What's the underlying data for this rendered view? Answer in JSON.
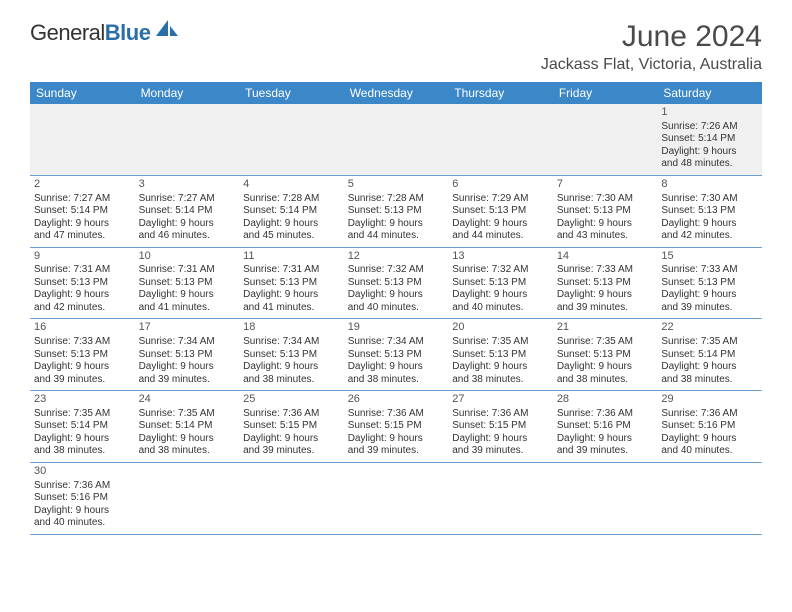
{
  "logo": {
    "text_a": "General",
    "text_b": "Blue"
  },
  "title": "June 2024",
  "location": "Jackass Flat, Victoria, Australia",
  "colors": {
    "header_bg": "#3b87c7",
    "header_text": "#ffffff",
    "row_border": "#6a9fcf",
    "first_row_bg": "#f0f0f0",
    "logo_blue": "#2b6fa8",
    "text": "#333333"
  },
  "day_headers": [
    "Sunday",
    "Monday",
    "Tuesday",
    "Wednesday",
    "Thursday",
    "Friday",
    "Saturday"
  ],
  "weeks": [
    [
      null,
      null,
      null,
      null,
      null,
      null,
      {
        "n": "1",
        "sr": "Sunrise: 7:26 AM",
        "ss": "Sunset: 5:14 PM",
        "d1": "Daylight: 9 hours",
        "d2": "and 48 minutes."
      }
    ],
    [
      {
        "n": "2",
        "sr": "Sunrise: 7:27 AM",
        "ss": "Sunset: 5:14 PM",
        "d1": "Daylight: 9 hours",
        "d2": "and 47 minutes."
      },
      {
        "n": "3",
        "sr": "Sunrise: 7:27 AM",
        "ss": "Sunset: 5:14 PM",
        "d1": "Daylight: 9 hours",
        "d2": "and 46 minutes."
      },
      {
        "n": "4",
        "sr": "Sunrise: 7:28 AM",
        "ss": "Sunset: 5:14 PM",
        "d1": "Daylight: 9 hours",
        "d2": "and 45 minutes."
      },
      {
        "n": "5",
        "sr": "Sunrise: 7:28 AM",
        "ss": "Sunset: 5:13 PM",
        "d1": "Daylight: 9 hours",
        "d2": "and 44 minutes."
      },
      {
        "n": "6",
        "sr": "Sunrise: 7:29 AM",
        "ss": "Sunset: 5:13 PM",
        "d1": "Daylight: 9 hours",
        "d2": "and 44 minutes."
      },
      {
        "n": "7",
        "sr": "Sunrise: 7:30 AM",
        "ss": "Sunset: 5:13 PM",
        "d1": "Daylight: 9 hours",
        "d2": "and 43 minutes."
      },
      {
        "n": "8",
        "sr": "Sunrise: 7:30 AM",
        "ss": "Sunset: 5:13 PM",
        "d1": "Daylight: 9 hours",
        "d2": "and 42 minutes."
      }
    ],
    [
      {
        "n": "9",
        "sr": "Sunrise: 7:31 AM",
        "ss": "Sunset: 5:13 PM",
        "d1": "Daylight: 9 hours",
        "d2": "and 42 minutes."
      },
      {
        "n": "10",
        "sr": "Sunrise: 7:31 AM",
        "ss": "Sunset: 5:13 PM",
        "d1": "Daylight: 9 hours",
        "d2": "and 41 minutes."
      },
      {
        "n": "11",
        "sr": "Sunrise: 7:31 AM",
        "ss": "Sunset: 5:13 PM",
        "d1": "Daylight: 9 hours",
        "d2": "and 41 minutes."
      },
      {
        "n": "12",
        "sr": "Sunrise: 7:32 AM",
        "ss": "Sunset: 5:13 PM",
        "d1": "Daylight: 9 hours",
        "d2": "and 40 minutes."
      },
      {
        "n": "13",
        "sr": "Sunrise: 7:32 AM",
        "ss": "Sunset: 5:13 PM",
        "d1": "Daylight: 9 hours",
        "d2": "and 40 minutes."
      },
      {
        "n": "14",
        "sr": "Sunrise: 7:33 AM",
        "ss": "Sunset: 5:13 PM",
        "d1": "Daylight: 9 hours",
        "d2": "and 39 minutes."
      },
      {
        "n": "15",
        "sr": "Sunrise: 7:33 AM",
        "ss": "Sunset: 5:13 PM",
        "d1": "Daylight: 9 hours",
        "d2": "and 39 minutes."
      }
    ],
    [
      {
        "n": "16",
        "sr": "Sunrise: 7:33 AM",
        "ss": "Sunset: 5:13 PM",
        "d1": "Daylight: 9 hours",
        "d2": "and 39 minutes."
      },
      {
        "n": "17",
        "sr": "Sunrise: 7:34 AM",
        "ss": "Sunset: 5:13 PM",
        "d1": "Daylight: 9 hours",
        "d2": "and 39 minutes."
      },
      {
        "n": "18",
        "sr": "Sunrise: 7:34 AM",
        "ss": "Sunset: 5:13 PM",
        "d1": "Daylight: 9 hours",
        "d2": "and 38 minutes."
      },
      {
        "n": "19",
        "sr": "Sunrise: 7:34 AM",
        "ss": "Sunset: 5:13 PM",
        "d1": "Daylight: 9 hours",
        "d2": "and 38 minutes."
      },
      {
        "n": "20",
        "sr": "Sunrise: 7:35 AM",
        "ss": "Sunset: 5:13 PM",
        "d1": "Daylight: 9 hours",
        "d2": "and 38 minutes."
      },
      {
        "n": "21",
        "sr": "Sunrise: 7:35 AM",
        "ss": "Sunset: 5:13 PM",
        "d1": "Daylight: 9 hours",
        "d2": "and 38 minutes."
      },
      {
        "n": "22",
        "sr": "Sunrise: 7:35 AM",
        "ss": "Sunset: 5:14 PM",
        "d1": "Daylight: 9 hours",
        "d2": "and 38 minutes."
      }
    ],
    [
      {
        "n": "23",
        "sr": "Sunrise: 7:35 AM",
        "ss": "Sunset: 5:14 PM",
        "d1": "Daylight: 9 hours",
        "d2": "and 38 minutes."
      },
      {
        "n": "24",
        "sr": "Sunrise: 7:35 AM",
        "ss": "Sunset: 5:14 PM",
        "d1": "Daylight: 9 hours",
        "d2": "and 38 minutes."
      },
      {
        "n": "25",
        "sr": "Sunrise: 7:36 AM",
        "ss": "Sunset: 5:15 PM",
        "d1": "Daylight: 9 hours",
        "d2": "and 39 minutes."
      },
      {
        "n": "26",
        "sr": "Sunrise: 7:36 AM",
        "ss": "Sunset: 5:15 PM",
        "d1": "Daylight: 9 hours",
        "d2": "and 39 minutes."
      },
      {
        "n": "27",
        "sr": "Sunrise: 7:36 AM",
        "ss": "Sunset: 5:15 PM",
        "d1": "Daylight: 9 hours",
        "d2": "and 39 minutes."
      },
      {
        "n": "28",
        "sr": "Sunrise: 7:36 AM",
        "ss": "Sunset: 5:16 PM",
        "d1": "Daylight: 9 hours",
        "d2": "and 39 minutes."
      },
      {
        "n": "29",
        "sr": "Sunrise: 7:36 AM",
        "ss": "Sunset: 5:16 PM",
        "d1": "Daylight: 9 hours",
        "d2": "and 40 minutes."
      }
    ],
    [
      {
        "n": "30",
        "sr": "Sunrise: 7:36 AM",
        "ss": "Sunset: 5:16 PM",
        "d1": "Daylight: 9 hours",
        "d2": "and 40 minutes."
      },
      null,
      null,
      null,
      null,
      null,
      null
    ]
  ]
}
